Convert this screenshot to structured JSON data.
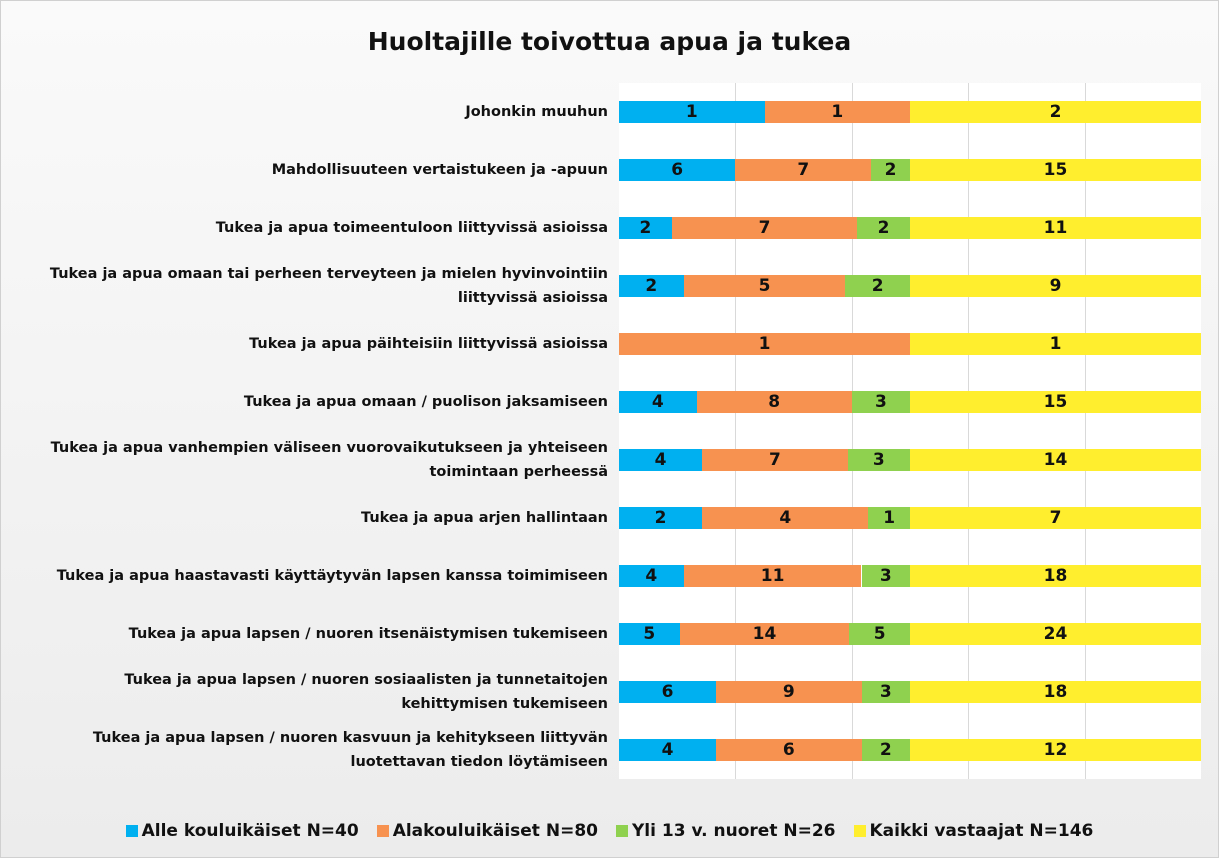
{
  "chart_data": {
    "type": "bar100h",
    "title": "Huoltajille toivottua apua ja tukea",
    "categories": [
      "Johonkin muuhun",
      "Mahdollisuuteen vertaistukeen ja -apuun",
      "Tukea ja apua toimeentuloon liittyvissä asioissa",
      "Tukea ja apua omaan tai perheen terveyteen ja mielen hyvinvointiin liittyvissä asioissa",
      "Tukea ja apua päihteisiin liittyvissä asioissa",
      "Tukea ja apua omaan / puolison jaksamiseen",
      "Tukea ja apua vanhempien väliseen vuorovaikutukseen ja yhteiseen toimintaan perheessä",
      "Tukea ja apua arjen hallintaan",
      "Tukea ja apua haastavasti käyttäytyvän lapsen kanssa toimimiseen",
      "Tukea ja apua lapsen / nuoren itsenäistymisen tukemiseen",
      "Tukea ja apua lapsen / nuoren sosiaalisten ja tunnetaitojen kehittymisen tukemiseen",
      "Tukea ja apua lapsen / nuoren kasvuun ja kehitykseen liittyvän luotettavan tiedon löytämiseen"
    ],
    "series": [
      {
        "name": "Alle kouluikäiset N=40",
        "color": "#00b0f0",
        "values": [
          1,
          6,
          2,
          2,
          0,
          4,
          4,
          2,
          4,
          5,
          6,
          4
        ]
      },
      {
        "name": "Alakouluikäiset N=80",
        "color": "#f79250",
        "values": [
          1,
          7,
          7,
          5,
          1,
          8,
          7,
          4,
          11,
          14,
          9,
          6
        ]
      },
      {
        "name": "Yli 13 v. nuoret N=26",
        "color": "#8fd14f",
        "values": [
          0,
          2,
          2,
          2,
          0,
          3,
          3,
          1,
          3,
          5,
          3,
          2
        ]
      },
      {
        "name": "Kaikki vastaajat N=146",
        "color": "#ffee2e",
        "values": [
          2,
          15,
          11,
          9,
          1,
          15,
          14,
          7,
          18,
          24,
          18,
          12
        ]
      }
    ],
    "grid": true
  }
}
